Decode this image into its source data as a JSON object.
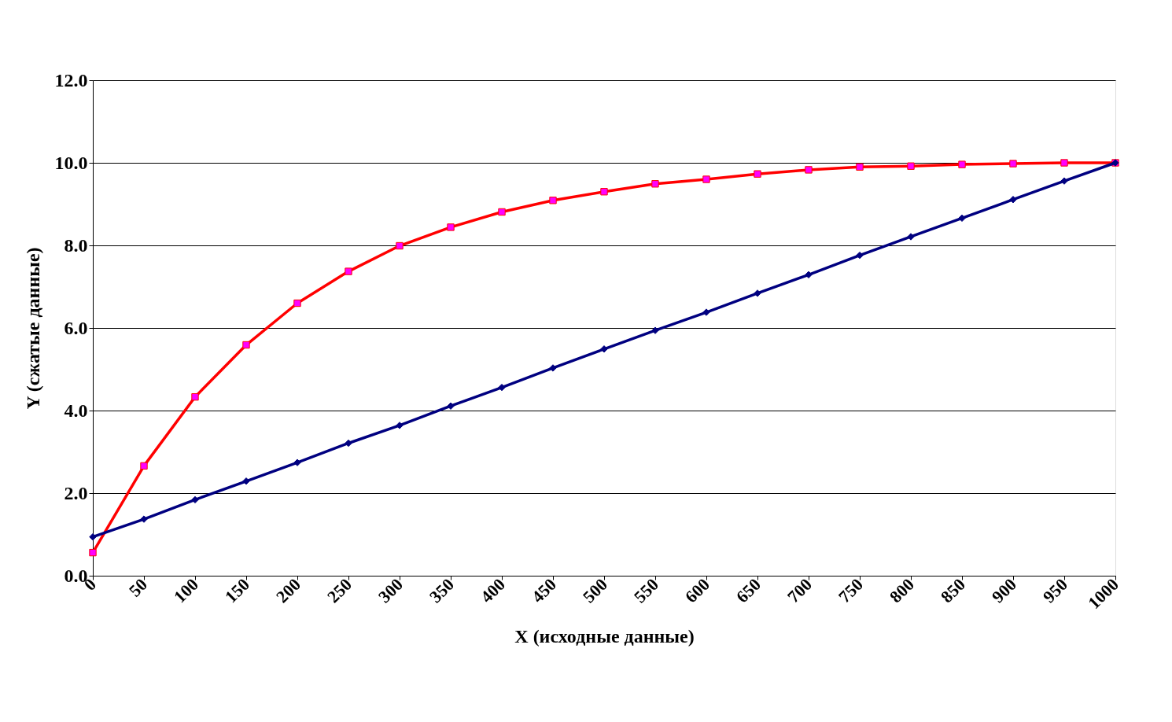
{
  "chart_data": {
    "type": "line",
    "xlabel": "X (исходные данные)",
    "ylabel": "Y (сжатые данные)",
    "categories": [
      "0",
      "50",
      "100",
      "150",
      "200",
      "250",
      "300",
      "350",
      "400",
      "450",
      "500",
      "550",
      "600",
      "650",
      "700",
      "750",
      "800",
      "850",
      "900",
      "950",
      "1000"
    ],
    "series": [
      {
        "color": "#ff0000",
        "marker": "square",
        "values": [
          0.56,
          2.66,
          4.33,
          5.59,
          6.6,
          7.37,
          7.99,
          8.44,
          8.81,
          9.09,
          9.3,
          9.49,
          9.6,
          9.73,
          9.83,
          9.9,
          9.92,
          9.96,
          9.98,
          10.0,
          10.0
        ]
      },
      {
        "color": "#000080",
        "marker": "diamond",
        "values": [
          0.94,
          1.37,
          1.84,
          2.29,
          2.74,
          3.21,
          3.64,
          4.11,
          4.56,
          5.03,
          5.49,
          5.94,
          6.38,
          6.84,
          7.29,
          7.76,
          8.21,
          8.66,
          9.11,
          9.56,
          10.0
        ]
      }
    ],
    "ylim": [
      0,
      12
    ],
    "yticks": [
      {
        "value": 0,
        "label": "0.0"
      },
      {
        "value": 2,
        "label": "2.0"
      },
      {
        "value": 4,
        "label": "4.0"
      },
      {
        "value": 6,
        "label": "6.0"
      },
      {
        "value": 8,
        "label": "8.0"
      },
      {
        "value": 10,
        "label": "10.0"
      },
      {
        "value": 12,
        "label": "12.0"
      }
    ],
    "grid": "y",
    "line_style": "solid"
  }
}
